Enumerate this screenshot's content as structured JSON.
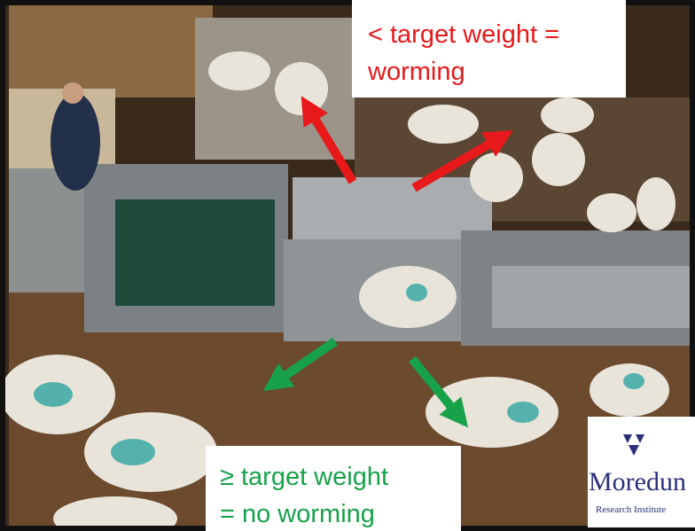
{
  "annotations": {
    "top": {
      "lines": [
        "< target weight =",
        "worming"
      ]
    },
    "bottom": {
      "lines": [
        "≥ target weight",
        "= no worming"
      ]
    }
  },
  "logo": {
    "name": "Moredun",
    "subtitle": "Research Institute"
  }
}
